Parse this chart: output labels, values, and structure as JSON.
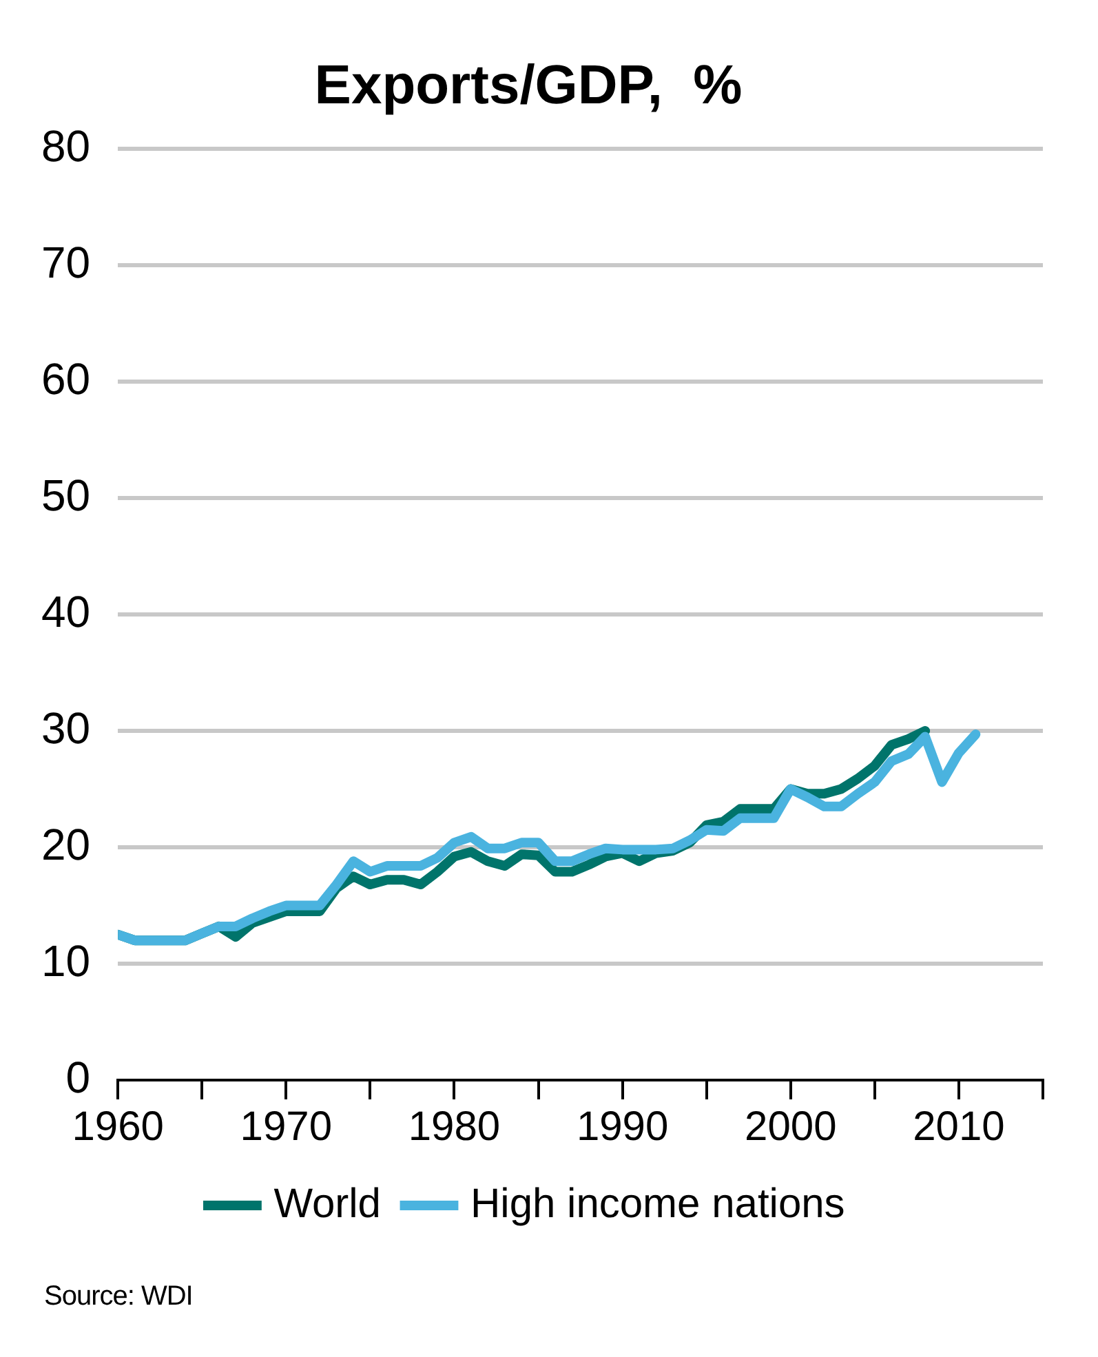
{
  "chart_data": {
    "type": "line",
    "title": "Exports/GDP,  %",
    "x": [
      1960,
      1961,
      1962,
      1963,
      1964,
      1965,
      1966,
      1967,
      1968,
      1969,
      1970,
      1971,
      1972,
      1973,
      1974,
      1975,
      1976,
      1977,
      1978,
      1979,
      1980,
      1981,
      1982,
      1983,
      1984,
      1985,
      1986,
      1987,
      1988,
      1989,
      1990,
      1991,
      1992,
      1993,
      1994,
      1995,
      1996,
      1997,
      1998,
      1999,
      2000,
      2001,
      2002,
      2003,
      2004,
      2005,
      2006,
      2007,
      2008,
      2009,
      2010,
      2011
    ],
    "series": [
      {
        "name": "World",
        "color": "#00746b",
        "values": [
          12.5,
          12,
          12,
          12,
          12,
          12.6,
          13.2,
          12.3,
          13.5,
          14,
          14.5,
          14.5,
          14.5,
          16.5,
          17.5,
          16.8,
          17.2,
          17.2,
          16.8,
          17.9,
          19.2,
          19.6,
          18.8,
          18.4,
          19.4,
          19.3,
          17.9,
          17.9,
          18.5,
          19.2,
          19.5,
          18.8,
          19.5,
          19.7,
          20.4,
          21.9,
          22.2,
          23.3,
          23.3,
          23.3,
          25,
          24.6,
          24.6,
          25,
          25.9,
          27,
          28.8,
          29.3,
          30,
          null,
          null,
          null
        ]
      },
      {
        "name": "High income nations",
        "color": "#4ab3df",
        "values": [
          12.5,
          12,
          12,
          12,
          12,
          12.6,
          13.2,
          13.2,
          13.9,
          14.5,
          15,
          15,
          15,
          16.8,
          18.8,
          17.9,
          18.4,
          18.4,
          18.4,
          19.1,
          20.4,
          20.9,
          19.9,
          19.9,
          20.4,
          20.4,
          18.8,
          18.8,
          19.4,
          19.9,
          19.8,
          19.8,
          19.8,
          19.9,
          20.6,
          21.5,
          21.4,
          22.5,
          22.5,
          22.5,
          25,
          24.3,
          23.5,
          23.5,
          24.6,
          25.6,
          27.4,
          28,
          29.5,
          25.6,
          28.1,
          29.7
        ]
      }
    ],
    "xlim": [
      1960,
      2015
    ],
    "xticks": [
      1960,
      {
        "value": 1965,
        "label": null
      },
      1970,
      {
        "value": 1975,
        "label": null
      },
      1980,
      {
        "value": 1985,
        "label": null
      },
      1990,
      {
        "value": 1995,
        "label": null
      },
      2000,
      {
        "value": 2005,
        "label": null
      },
      2010,
      {
        "value": 2015,
        "label": null
      }
    ],
    "ylim": [
      0,
      80
    ],
    "yticks": [
      0,
      10,
      20,
      30,
      40,
      50,
      60,
      70,
      80
    ],
    "grid": "y",
    "legend": "bottom",
    "marker": "none",
    "line_style": "solid",
    "annotations": [
      "Source:  WDI"
    ]
  }
}
